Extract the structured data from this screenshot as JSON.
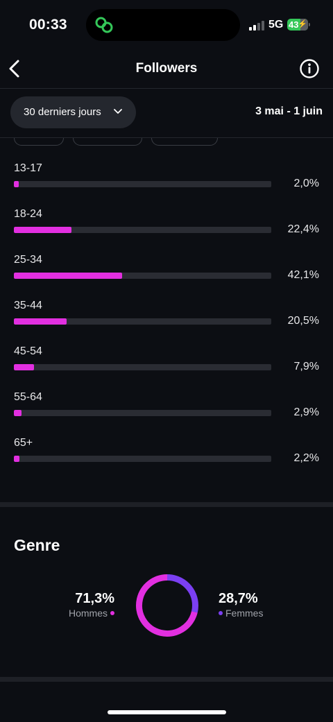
{
  "status": {
    "time": "00:33",
    "network": "5G",
    "battery": "43"
  },
  "nav": {
    "title": "Followers",
    "back_icon": "chevron-left-icon",
    "info_icon": "info-icon"
  },
  "filter": {
    "period": "30 derniers jours",
    "date_range": "3 mai - 1 juin"
  },
  "age_groups": [
    {
      "label": "13-17",
      "value": 2.0,
      "display": "2,0%"
    },
    {
      "label": "18-24",
      "value": 22.4,
      "display": "22,4%"
    },
    {
      "label": "25-34",
      "value": 42.1,
      "display": "42,1%"
    },
    {
      "label": "35-44",
      "value": 20.5,
      "display": "20,5%"
    },
    {
      "label": "45-54",
      "value": 7.9,
      "display": "7,9%"
    },
    {
      "label": "55-64",
      "value": 2.9,
      "display": "2,9%"
    },
    {
      "label": "65+",
      "value": 2.2,
      "display": "2,2%"
    }
  ],
  "genre": {
    "title": "Genre",
    "men": {
      "value": 71.3,
      "display": "71,3%",
      "label": "Hommes",
      "color": "#e22fe0"
    },
    "women": {
      "value": 28.7,
      "display": "28,7%",
      "label": "Femmes",
      "color": "#7b3ff2"
    }
  },
  "colors": {
    "accent": "#e22fe0",
    "secondary": "#7b3ff2",
    "track": "#2a2c33",
    "background": "#0c0e13"
  }
}
